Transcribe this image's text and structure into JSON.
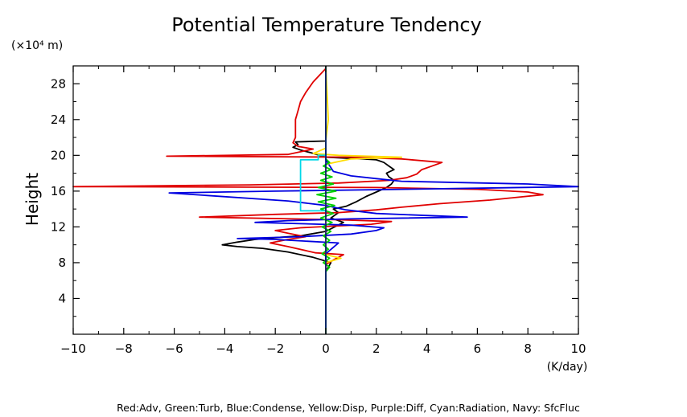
{
  "chart_data": {
    "type": "line",
    "title": "Potential Temperature Tendency",
    "xlabel": "(K/day)",
    "ylabel": "Height",
    "yunit": "(×10⁴ m)",
    "xlim": [
      -10,
      10
    ],
    "ylim": [
      0,
      30
    ],
    "xticks": [
      -10,
      -8,
      -6,
      -4,
      -2,
      0,
      2,
      4,
      6,
      8,
      10
    ],
    "yticks": [
      4,
      8,
      12,
      16,
      20,
      24,
      28
    ],
    "xtick_labels": [
      "−10",
      "−8",
      "−6",
      "−4",
      "−2",
      "0",
      "2",
      "4",
      "6",
      "8",
      "10"
    ],
    "ytick_labels": [
      "4",
      "8",
      "12",
      "16",
      "20",
      "24",
      "28"
    ],
    "legend_text": "Red:Adv, Green:Turb, Blue:Condense, Yellow:Disp, Purple:Diff, Cyan:Radiation, Navy: SfcFluc",
    "grid": false,
    "series": [
      {
        "key": "black",
        "color": "#000000",
        "points": [
          [
            0,
            0
          ],
          [
            0,
            7
          ],
          [
            0.2,
            8
          ],
          [
            -0.5,
            8.6
          ],
          [
            -1.5,
            9.2
          ],
          [
            -2.5,
            9.6
          ],
          [
            -3.5,
            9.8
          ],
          [
            -4.1,
            10.0
          ],
          [
            -3.5,
            10.3
          ],
          [
            -2.8,
            10.6
          ],
          [
            -2.0,
            10.8
          ],
          [
            -1.0,
            11.0
          ],
          [
            0,
            11.5
          ],
          [
            0.7,
            12.5
          ],
          [
            0.2,
            13.0
          ],
          [
            0.5,
            13.6
          ],
          [
            0.3,
            14.0
          ],
          [
            0.8,
            14.3
          ],
          [
            1.2,
            14.8
          ],
          [
            1.6,
            15.4
          ],
          [
            2.0,
            15.9
          ],
          [
            2.4,
            16.4
          ],
          [
            2.6,
            16.8
          ],
          [
            2.7,
            17.2
          ],
          [
            2.5,
            17.6
          ],
          [
            2.4,
            18.0
          ],
          [
            2.7,
            18.4
          ],
          [
            2.5,
            18.8
          ],
          [
            2.3,
            19.2
          ],
          [
            2.0,
            19.5
          ],
          [
            1.5,
            19.6
          ],
          [
            0.7,
            19.7
          ],
          [
            0,
            19.8
          ],
          [
            -0.6,
            20.3
          ],
          [
            -1.0,
            20.6
          ],
          [
            -1.3,
            20.9
          ],
          [
            -1.1,
            21.2
          ],
          [
            -1.2,
            21.5
          ],
          [
            0,
            21.6
          ],
          [
            0,
            30
          ]
        ]
      },
      {
        "key": "red",
        "color": "#e00000",
        "points": [
          [
            0,
            0
          ],
          [
            0,
            7.8
          ],
          [
            0.3,
            8.3
          ],
          [
            0.7,
            8.9
          ],
          [
            -0.4,
            9.1
          ],
          [
            -1.5,
            9.8
          ],
          [
            -2.2,
            10.2
          ],
          [
            -1.5,
            10.6
          ],
          [
            -0.8,
            10.9
          ],
          [
            -1.5,
            11.3
          ],
          [
            -2.0,
            11.6
          ],
          [
            -1.0,
            11.9
          ],
          [
            1.8,
            12.3
          ],
          [
            2.6,
            12.6
          ],
          [
            0.5,
            12.8
          ],
          [
            -5.0,
            13.1
          ],
          [
            -2.0,
            13.4
          ],
          [
            0.5,
            13.6
          ],
          [
            2.0,
            13.9
          ],
          [
            3.0,
            14.2
          ],
          [
            4.5,
            14.6
          ],
          [
            6.5,
            15.0
          ],
          [
            8.6,
            15.6
          ],
          [
            8.0,
            15.9
          ],
          [
            6.0,
            16.2
          ],
          [
            2.0,
            16.4
          ],
          [
            -10.0,
            16.5
          ],
          [
            -3.0,
            16.7
          ],
          [
            0.5,
            16.9
          ],
          [
            2.5,
            17.2
          ],
          [
            3.2,
            17.5
          ],
          [
            3.6,
            17.9
          ],
          [
            3.8,
            18.4
          ],
          [
            4.2,
            18.8
          ],
          [
            4.6,
            19.2
          ],
          [
            3.0,
            19.6
          ],
          [
            1.0,
            19.8
          ],
          [
            -6.3,
            19.9
          ],
          [
            -1.5,
            20.1
          ],
          [
            -1.0,
            20.4
          ],
          [
            -0.5,
            20.7
          ],
          [
            -1.1,
            21.0
          ],
          [
            -1.3,
            21.4
          ],
          [
            -1.2,
            22.0
          ],
          [
            -1.2,
            23.0
          ],
          [
            -1.2,
            24.0
          ],
          [
            -1.1,
            25.0
          ],
          [
            -1.0,
            26.0
          ],
          [
            -0.8,
            27.0
          ],
          [
            -0.5,
            28.2
          ],
          [
            0,
            29.7
          ]
        ]
      },
      {
        "key": "blue",
        "color": "#0000e0",
        "points": [
          [
            0,
            0
          ],
          [
            0,
            9.0
          ],
          [
            0.5,
            10.2
          ],
          [
            -2.0,
            10.6
          ],
          [
            -3.5,
            10.7
          ],
          [
            -1.0,
            10.9
          ],
          [
            1.0,
            11.2
          ],
          [
            2.0,
            11.6
          ],
          [
            2.3,
            11.9
          ],
          [
            1.0,
            12.2
          ],
          [
            -2.8,
            12.5
          ],
          [
            -1.5,
            12.7
          ],
          [
            1.0,
            12.9
          ],
          [
            5.6,
            13.1
          ],
          [
            2.0,
            13.5
          ],
          [
            0.8,
            13.9
          ],
          [
            0,
            14.4
          ],
          [
            -1.5,
            14.9
          ],
          [
            -6.2,
            15.8
          ],
          [
            -2.0,
            16.0
          ],
          [
            3.0,
            16.2
          ],
          [
            10.0,
            16.5
          ],
          [
            8.0,
            16.8
          ],
          [
            3.0,
            17.1
          ],
          [
            2.0,
            17.4
          ],
          [
            1.0,
            17.7
          ],
          [
            0.3,
            18.2
          ],
          [
            0,
            19.5
          ],
          [
            0,
            30
          ]
        ]
      },
      {
        "key": "yellow",
        "color": "#ffdd00",
        "points": [
          [
            0,
            0
          ],
          [
            0,
            8.0
          ],
          [
            0.6,
            8.5
          ],
          [
            0,
            8.9
          ],
          [
            0,
            19.0
          ],
          [
            1.0,
            19.6
          ],
          [
            3.0,
            19.8
          ],
          [
            0.5,
            20.0
          ],
          [
            -0.5,
            20.2
          ],
          [
            0,
            20.8
          ],
          [
            0,
            21.6
          ],
          [
            0.1,
            24.0
          ],
          [
            0,
            30
          ]
        ]
      },
      {
        "key": "green",
        "color": "#00d000",
        "points": [
          [
            0,
            0
          ],
          [
            0,
            7.0
          ],
          [
            0.15,
            7.5
          ],
          [
            -0.1,
            8.0
          ],
          [
            0.15,
            8.5
          ],
          [
            -0.15,
            9.0
          ],
          [
            0.1,
            9.5
          ],
          [
            -0.1,
            10.0
          ],
          [
            0.15,
            10.5
          ],
          [
            -0.1,
            11.0
          ],
          [
            0.2,
            11.5
          ],
          [
            -0.15,
            12.0
          ],
          [
            0.25,
            12.5
          ],
          [
            -0.2,
            13.0
          ],
          [
            0.3,
            13.5
          ],
          [
            -0.2,
            14.0
          ],
          [
            0.35,
            14.4
          ],
          [
            -0.3,
            14.8
          ],
          [
            0.4,
            15.2
          ],
          [
            -0.35,
            15.6
          ],
          [
            0.4,
            16.0
          ],
          [
            -0.3,
            16.4
          ],
          [
            0.3,
            16.8
          ],
          [
            -0.2,
            17.2
          ],
          [
            0.25,
            17.6
          ],
          [
            -0.2,
            18.0
          ],
          [
            0.2,
            18.4
          ],
          [
            -0.1,
            18.8
          ],
          [
            0.15,
            19.2
          ],
          [
            0,
            19.6
          ],
          [
            0,
            30
          ]
        ]
      },
      {
        "key": "cyan",
        "color": "#00d8e8",
        "points": [
          [
            0,
            13.8
          ],
          [
            -1.0,
            13.8
          ],
          [
            -1.0,
            19.5
          ],
          [
            -0.3,
            19.5
          ],
          [
            -0.3,
            20.0
          ],
          [
            0,
            20.0
          ]
        ]
      },
      {
        "key": "navy",
        "color": "#000080",
        "points": [
          [
            0,
            0
          ],
          [
            0,
            30
          ]
        ]
      }
    ]
  }
}
